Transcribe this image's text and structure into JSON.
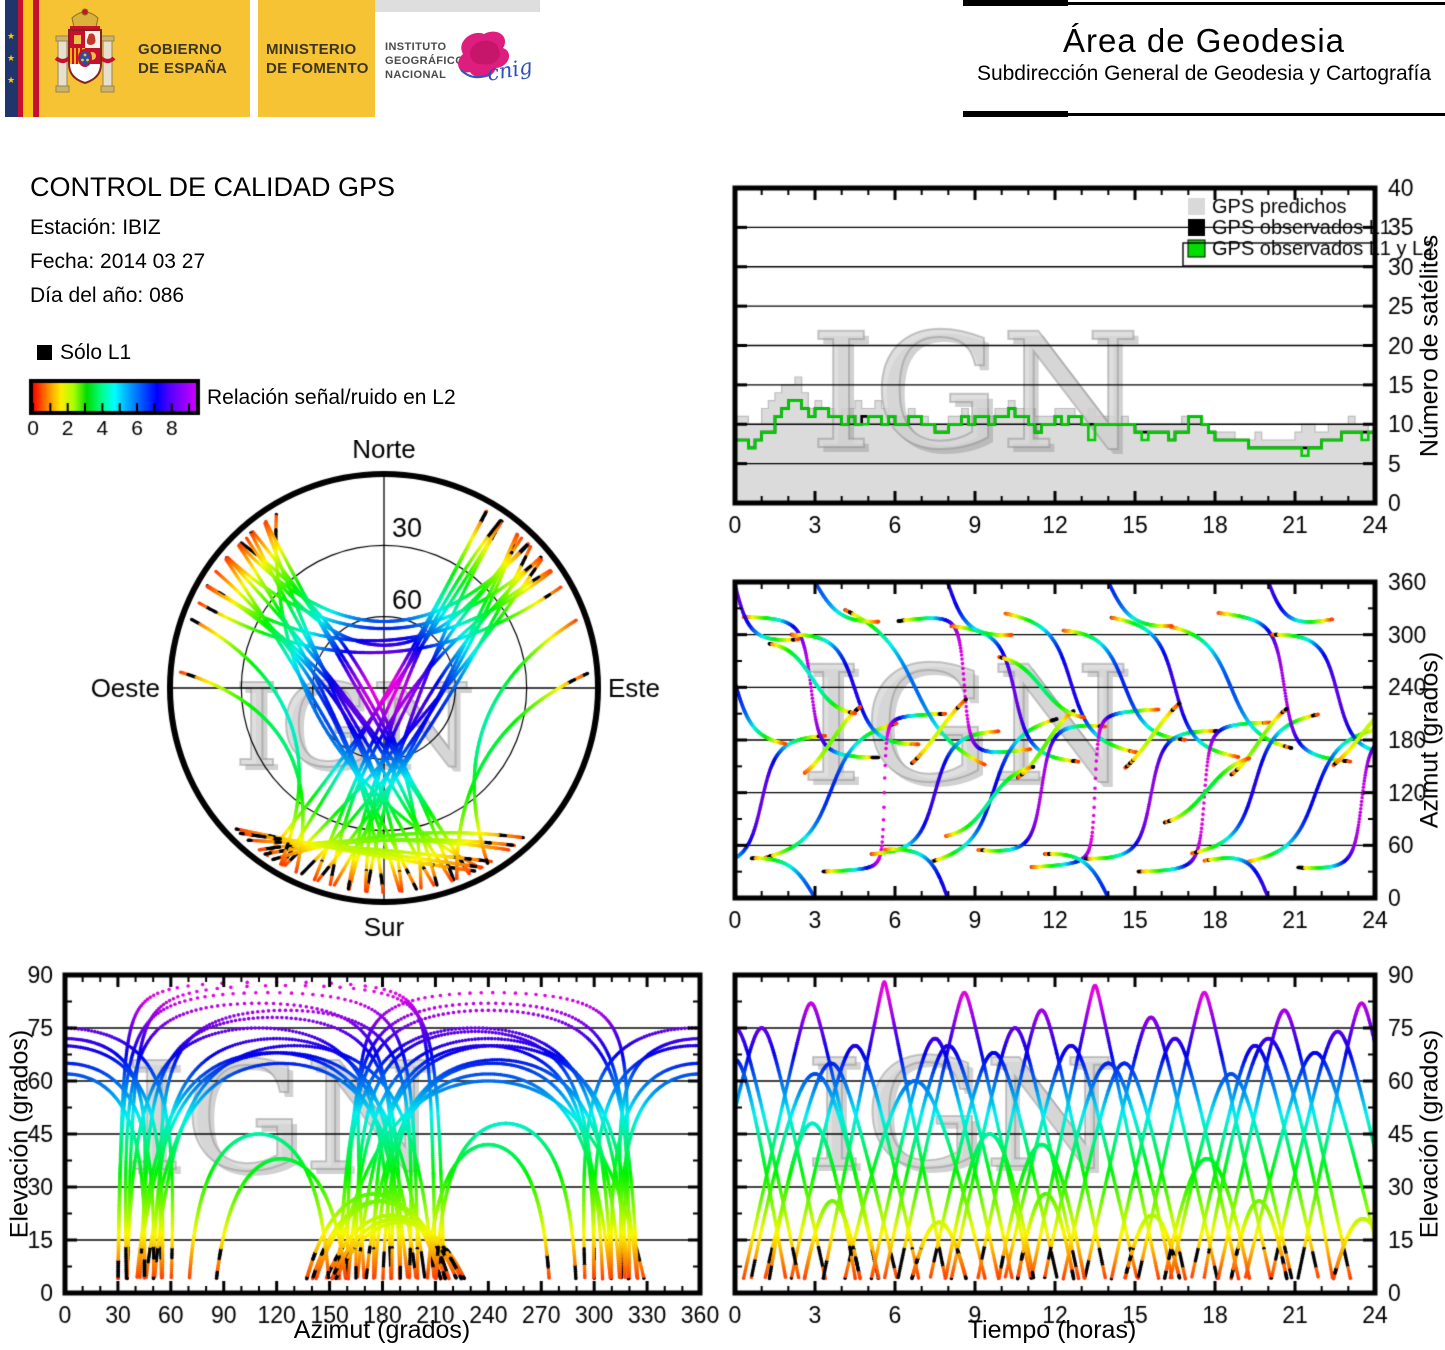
{
  "header": {
    "gobierno_line1": "GOBIERNO",
    "gobierno_line2": "DE ESPAÑA",
    "ministerio_line1": "MINISTERIO",
    "ministerio_line2": "DE FOMENTO",
    "ign_line1": "INSTITUTO",
    "ign_line2": "GEOGRÁFICO",
    "ign_line3": "NACIONAL",
    "cnig_text": "cnig",
    "area_title": "Área de Geodesia",
    "area_subtitle": "Subdirección General de Geodesia y Cartografía",
    "banner_color": "#F5C333"
  },
  "info": {
    "title": "CONTROL DE CALIDAD GPS",
    "station": "Estación: IBIZ",
    "date": "Fecha: 2014 03 27",
    "day_of_year": "Día del año: 086"
  },
  "legend": {
    "solo_l1_label": "Sólo L1",
    "colorbar": {
      "label": "Relación señal/ruido en L2",
      "ticks": [
        0,
        2,
        4,
        6,
        8
      ],
      "minor_every": 1,
      "range": [
        0,
        9.4
      ],
      "stops": [
        [
          "#ff0000",
          0
        ],
        [
          "#ff8800",
          0.09
        ],
        [
          "#ffee00",
          0.17
        ],
        [
          "#aaff00",
          0.25
        ],
        [
          "#00dd00",
          0.33
        ],
        [
          "#00ff88",
          0.42
        ],
        [
          "#00ffff",
          0.5
        ],
        [
          "#00aaff",
          0.58
        ],
        [
          "#0055ff",
          0.67
        ],
        [
          "#0000ff",
          0.76
        ],
        [
          "#5500ff",
          0.84
        ],
        [
          "#8800ff",
          0.91
        ],
        [
          "#cc00ff",
          1
        ]
      ]
    }
  },
  "watermark": "IGN",
  "chart_data": {
    "type": [
      "scatter",
      "area",
      "line"
    ],
    "colormap": {
      "description": "dot color encodes elevation / L2 signal-noise ratio: red = low, violet/magenta = high, black = L1 only",
      "max_hue": 300,
      "hue_scale": 320,
      "l1_only_color": "#000000"
    },
    "satellite_passes": {
      "fields": [
        "t_rise_h",
        "t_set_h",
        "az_rise_deg",
        "az_set_deg",
        "el_max_deg"
      ],
      "elevation_cutoff_deg": 4,
      "passes": [
        [
          -1.5,
          3.5,
          35,
          185,
          75
        ],
        [
          0.2,
          5.5,
          320,
          160,
          82
        ],
        [
          1.0,
          6.2,
          45,
          200,
          65
        ],
        [
          2.0,
          7.0,
          300,
          175,
          70
        ],
        [
          3.2,
          8.0,
          30,
          210,
          88
        ],
        [
          4.0,
          9.5,
          330,
          150,
          60
        ],
        [
          5.0,
          10.0,
          50,
          190,
          72
        ],
        [
          6.0,
          11.2,
          315,
          170,
          85
        ],
        [
          7.2,
          12.2,
          40,
          205,
          68
        ],
        [
          8.0,
          13.0,
          310,
          155,
          75
        ],
        [
          9.0,
          14.0,
          55,
          195,
          80
        ],
        [
          10.0,
          15.2,
          325,
          165,
          70
        ],
        [
          11.0,
          16.0,
          35,
          215,
          87
        ],
        [
          12.2,
          17.0,
          305,
          180,
          65
        ],
        [
          13.0,
          18.2,
          45,
          190,
          78
        ],
        [
          14.0,
          19.0,
          320,
          160,
          72
        ],
        [
          15.0,
          20.2,
          30,
          200,
          85
        ],
        [
          16.2,
          21.0,
          310,
          170,
          62
        ],
        [
          17.0,
          22.0,
          50,
          210,
          70
        ],
        [
          18.0,
          23.2,
          325,
          155,
          80
        ],
        [
          19.0,
          24.5,
          40,
          195,
          68
        ],
        [
          20.0,
          25.2,
          300,
          165,
          74
        ],
        [
          21.0,
          26.0,
          35,
          185,
          82
        ],
        [
          -2.0,
          2.0,
          315,
          175,
          66
        ],
        [
          0.5,
          5.5,
          45,
          315,
          62
        ],
        [
          5.5,
          10.5,
          55,
          300,
          70
        ],
        [
          11.5,
          16.5,
          50,
          310,
          65
        ],
        [
          17.5,
          22.5,
          42,
          318,
          72
        ],
        [
          -2.5,
          2.5,
          60,
          295,
          75
        ],
        [
          2.5,
          4.8,
          140,
          220,
          26
        ],
        [
          6.5,
          8.8,
          150,
          230,
          20
        ],
        [
          10.5,
          12.8,
          135,
          215,
          28
        ],
        [
          14.5,
          16.8,
          145,
          225,
          22
        ],
        [
          18.5,
          20.8,
          138,
          218,
          26
        ],
        [
          22.3,
          24.8,
          148,
          228,
          21
        ],
        [
          7.8,
          11.3,
          70,
          150,
          45
        ],
        [
          1.2,
          4.6,
          290,
          210,
          48
        ],
        [
          16.0,
          19.4,
          85,
          160,
          38
        ],
        [
          9.8,
          13.2,
          275,
          205,
          42
        ]
      ]
    },
    "satellite_count": {
      "t_step_h": 0.25,
      "x_range": [
        0,
        24
      ],
      "y_range": [
        0,
        40
      ],
      "legend": [
        "GPS predichos",
        "GPS observados L1",
        "GPS observados L1 y L2"
      ],
      "legend_colors": [
        "#D9D9D9",
        "#000000",
        "#00DD00"
      ],
      "colors": {
        "predicted_fill": "#DBDBDB",
        "predicted_edge": "#BDBDBD",
        "observed_l1": "#000000",
        "observed_l1_l2": "#00CC00"
      },
      "series": {
        "predicted": [
          11,
          11,
          10,
          10,
          12,
          13,
          14,
          15,
          15,
          16,
          14,
          12,
          13,
          12,
          12,
          11,
          12,
          12,
          13,
          12,
          12,
          13,
          12,
          11,
          11,
          11,
          12,
          11,
          11,
          10,
          10,
          10,
          11,
          11,
          12,
          11,
          12,
          12,
          11,
          12,
          12,
          13,
          12,
          12,
          12,
          11,
          11,
          11,
          12,
          12,
          12,
          11,
          11,
          12,
          11,
          11,
          11,
          10,
          11,
          10,
          10,
          10,
          10,
          10,
          10,
          10,
          10,
          11,
          11,
          11,
          10,
          9,
          9,
          9,
          9,
          8,
          8,
          8,
          9,
          8,
          8,
          8,
          8,
          8,
          9,
          10,
          10,
          9,
          9,
          10,
          10,
          10,
          11,
          10,
          10,
          9
        ],
        "observed_l1": [
          8,
          8,
          7,
          8,
          9,
          9,
          11,
          12,
          13,
          13,
          12,
          11,
          12,
          12,
          11,
          11,
          10,
          11,
          10,
          11,
          11,
          11,
          10,
          11,
          10,
          10,
          11,
          11,
          10,
          10,
          9,
          9,
          10,
          10,
          11,
          10,
          11,
          11,
          10,
          11,
          11,
          12,
          11,
          11,
          10,
          9,
          10,
          10,
          11,
          10,
          11,
          11,
          10,
          10,
          10,
          10,
          10,
          10,
          10,
          10,
          9,
          9,
          9,
          9,
          9,
          8,
          9,
          9,
          11,
          11,
          10,
          9,
          8,
          8,
          8,
          8,
          8,
          7,
          7,
          7,
          7,
          7,
          7,
          7,
          7,
          7,
          7,
          7,
          8,
          8,
          8,
          9,
          9,
          9,
          9,
          9
        ],
        "observed_l1_l2": [
          8,
          8,
          7,
          8,
          9,
          9,
          11,
          12,
          13,
          13,
          12,
          11,
          12,
          12,
          11,
          11,
          10,
          11,
          10,
          10,
          11,
          11,
          10,
          11,
          10,
          10,
          11,
          11,
          10,
          10,
          9,
          9,
          10,
          10,
          11,
          10,
          11,
          11,
          10,
          11,
          11,
          12,
          11,
          11,
          10,
          9,
          10,
          10,
          11,
          10,
          11,
          11,
          10,
          8,
          10,
          10,
          10,
          10,
          10,
          10,
          9,
          8,
          9,
          9,
          9,
          8,
          9,
          9,
          11,
          11,
          10,
          9,
          8,
          8,
          8,
          8,
          8,
          7,
          7,
          7,
          7,
          7,
          7,
          7,
          7,
          6,
          7,
          7,
          8,
          8,
          8,
          9,
          9,
          9,
          8,
          9
        ]
      }
    },
    "charts": {
      "satellites": {
        "ylabel": "Número de satélites",
        "xticks": [
          0,
          3,
          6,
          9,
          12,
          15,
          18,
          21,
          24
        ],
        "yticks": [
          0,
          5,
          10,
          15,
          20,
          25,
          30,
          35,
          40
        ],
        "grid": [
          5,
          10,
          15,
          20,
          25,
          30,
          35
        ],
        "x_range": [
          0,
          24
        ],
        "y_range": [
          0,
          40
        ]
      },
      "skyplot": {
        "north": "Norte",
        "south": "Sur",
        "east": "Este",
        "west": "Oeste",
        "ring_labels": [
          30,
          60
        ]
      },
      "azimuth_time": {
        "ylabel": "Azimut (grados)",
        "xticks": [
          0,
          3,
          6,
          9,
          12,
          15,
          18,
          21,
          24
        ],
        "yticks": [
          0,
          60,
          120,
          180,
          240,
          300,
          360
        ],
        "grid": [
          60,
          120,
          180,
          240,
          300
        ],
        "x_range": [
          0,
          24
        ],
        "y_range": [
          0,
          360
        ]
      },
      "elevation_azimuth": {
        "xlabel": "Azimut (grados)",
        "ylabel": "Elevación (grados)",
        "xticks": [
          0,
          30,
          60,
          90,
          120,
          150,
          180,
          210,
          240,
          270,
          300,
          330,
          360
        ],
        "yticks": [
          0,
          15,
          30,
          45,
          60,
          75,
          90
        ],
        "grid": [
          15,
          30,
          45,
          60,
          75
        ],
        "x_range": [
          0,
          360
        ],
        "y_range": [
          0,
          90
        ]
      },
      "elevation_time": {
        "xlabel": "Tiempo (horas)",
        "ylabel": "Elevación (grados)",
        "xticks": [
          0,
          3,
          6,
          9,
          12,
          15,
          18,
          21,
          24
        ],
        "yticks": [
          0,
          15,
          30,
          45,
          60,
          75,
          90
        ],
        "grid": [
          15,
          30,
          45,
          60,
          75
        ],
        "x_range": [
          0,
          24
        ],
        "y_range": [
          0,
          90
        ]
      }
    }
  }
}
